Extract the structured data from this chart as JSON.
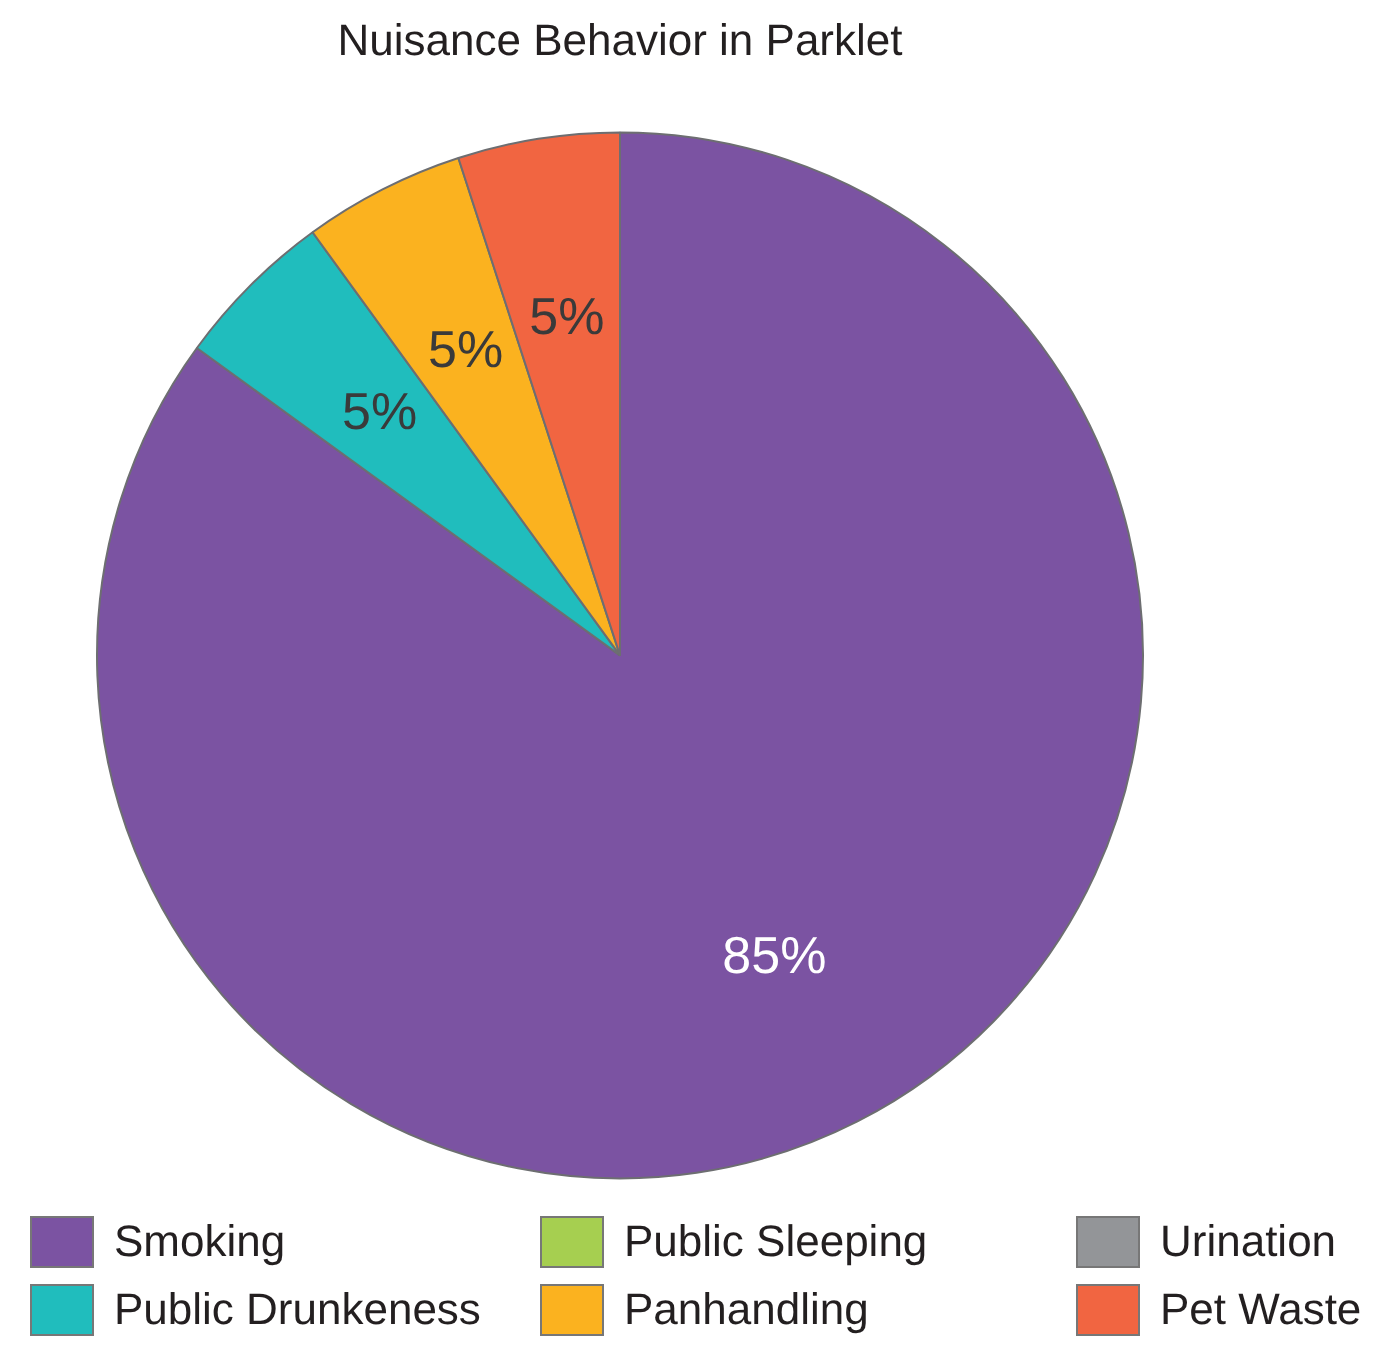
{
  "chart_data": {
    "type": "pie",
    "title": "Nuisance Behavior in Parklet",
    "categories": [
      "Smoking",
      "Public Sleeping",
      "Urination",
      "Public Drunkeness",
      "Panhandling",
      "Pet Waste"
    ],
    "values": [
      85,
      0,
      0,
      5,
      5,
      5
    ],
    "colors": [
      "#7b53a2",
      "#a6cf50",
      "#939598",
      "#20bdbd",
      "#fbb21f",
      "#f16541"
    ],
    "value_labels": [
      "85%",
      null,
      null,
      "5%",
      "5%",
      "5%"
    ],
    "legend": "bottom"
  }
}
